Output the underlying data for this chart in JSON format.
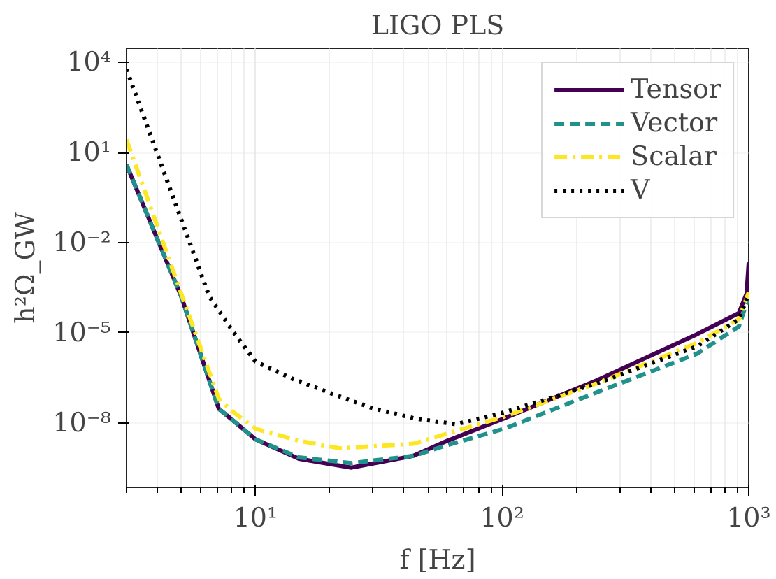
{
  "chart_data": {
    "type": "line",
    "title": "LIGO PLS",
    "xlabel": "f [Hz]",
    "ylabel": "h²Ω_GW",
    "log": "xy",
    "grid": true,
    "legend": "top right",
    "xlim": [
      3,
      1000
    ],
    "ylim": [
      7e-11,
      30000.0
    ],
    "xticks": [
      {
        "value": 10,
        "label": "10¹"
      },
      {
        "value": 100,
        "label": "10²"
      },
      {
        "value": 1000,
        "label": "10³"
      }
    ],
    "yticks": [
      {
        "value": 1e-08,
        "label": "10⁻⁸"
      },
      {
        "value": 1e-05,
        "label": "10⁻⁵"
      },
      {
        "value": 0.01,
        "label": "10⁻²"
      },
      {
        "value": 10,
        "label": "10¹"
      },
      {
        "value": 10000,
        "label": "10⁴"
      }
    ],
    "series": [
      {
        "name": "Tensor",
        "color": "#440154",
        "line_style": "solid",
        "x": [
          3,
          5,
          7.1,
          8,
          10,
          15,
          24.5,
          43.7,
          60,
          102,
          240,
          617,
          912,
          980,
          1000
        ],
        "values": [
          3.9,
          0.00016,
          2.9e-08,
          1.3e-08,
          2.8e-09,
          6.3e-10,
          3.2e-10,
          7.9e-10,
          2.5e-09,
          1.4e-08,
          2.5e-07,
          8.9e-06,
          4.5e-05,
          0.0002,
          0.0022
        ]
      },
      {
        "name": "Vector",
        "color": "#21918c",
        "line_style": "dashed",
        "x": [
          3,
          5,
          7.1,
          8,
          10,
          15,
          24.5,
          43.7,
          60,
          102,
          240,
          617,
          912,
          1000
        ],
        "values": [
          3.9,
          0.00016,
          2.9e-08,
          1.3e-08,
          2.8e-09,
          7e-10,
          4.5e-10,
          7.9e-10,
          1.8e-09,
          6.3e-09,
          1e-07,
          2e-06,
          1.6e-05,
          0.00016
        ]
      },
      {
        "name": "Scalar",
        "color": "#fde725",
        "line_style": "dashdot",
        "x": [
          3,
          5,
          7.1,
          8,
          10,
          15,
          22,
          43.7,
          102,
          240,
          617,
          912,
          1000
        ],
        "values": [
          27,
          0.0002,
          6.3e-08,
          2.5e-08,
          6.3e-09,
          2.5e-09,
          1.4e-09,
          2e-09,
          1.6e-08,
          2e-07,
          4.5e-06,
          2.8e-05,
          0.00022
        ]
      },
      {
        "name": "V",
        "color": "#000000",
        "line_style": "dotted",
        "x": [
          3,
          6.5,
          8.1,
          10,
          14,
          21,
          30,
          44,
          65,
          102,
          240,
          617,
          912,
          1000
        ],
        "values": [
          5900,
          0.00016,
          1.1e-05,
          1.1e-06,
          3e-07,
          8.5e-08,
          3e-08,
          1.4e-08,
          8.9e-09,
          2.2e-08,
          2e-07,
          3.5e-06,
          2.8e-05,
          0.0002
        ]
      }
    ]
  }
}
